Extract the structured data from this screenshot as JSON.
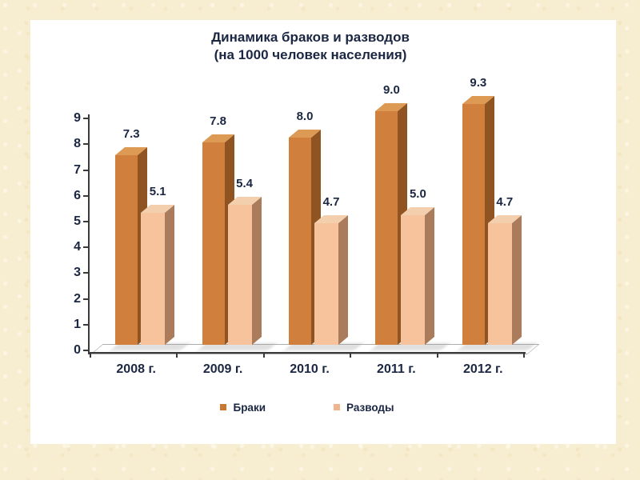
{
  "page": {
    "background_color": "#f7eed2",
    "panel_color": "#ffffff",
    "text_color": "#1b2742",
    "axis_color": "#3a3a3a"
  },
  "chart_data": {
    "type": "bar",
    "projection": "3d",
    "title": "Динамика браков и разводов",
    "subtitle": "(на 1000 человек населения)",
    "categories": [
      "2008 г.",
      "2009 г.",
      "2010 г.",
      "2011 г.",
      "2012 г."
    ],
    "series": [
      {
        "name": "Браки",
        "values": [
          7.3,
          7.8,
          8.0,
          9.0,
          9.3
        ],
        "front_color": "#d0803c",
        "side_color": "#8f5421",
        "top_color": "#dd9a55",
        "legend_color": "#c87830"
      },
      {
        "name": "Разводы",
        "values": [
          5.1,
          5.4,
          4.7,
          5.0,
          4.7
        ],
        "front_color": "#f7c39d",
        "side_color": "#ab7c5b",
        "top_color": "#f4cfae",
        "legend_color": "#f2b48c"
      }
    ],
    "ylim": [
      0,
      9
    ],
    "ytick_step": 1,
    "ytick_labels": [
      "0",
      "1",
      "2",
      "3",
      "4",
      "5",
      "6",
      "7",
      "8",
      "9"
    ],
    "grid": false,
    "legend_position": "bottom",
    "value_label_decimals": 1
  }
}
